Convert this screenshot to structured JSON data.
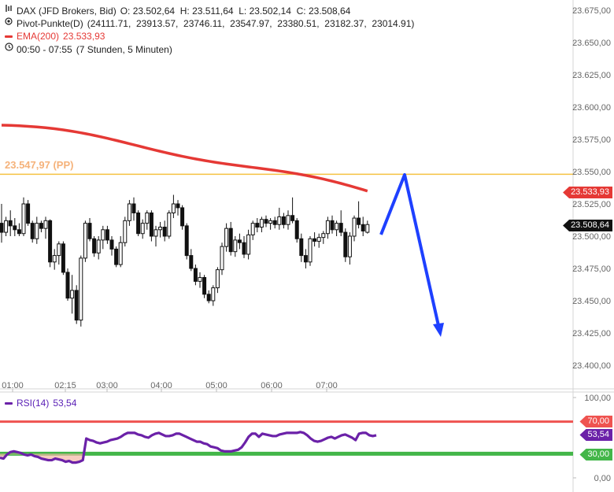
{
  "legend": {
    "instrument": "DAX (JFD Brokers, Bid)",
    "ohlc": "O: 23.502,64  H: 23.511,64  L: 23.502,14  C: 23.508,64",
    "pivot": "Pivot-Punkte(D)",
    "pivot_values": "(24111.71,  23913.57,  23746.11,  23547.97,  23380.51,  23182.37,  23014.91)",
    "ema": "EMA(200)",
    "ema_value": "23.533,93",
    "time_range": "00:50 - 07:55",
    "duration": "(7 Stunden, 5 Minuten)"
  },
  "pp_label": "23.547,97 (PP)",
  "badges": {
    "ema": "23.533,93",
    "last": "23.508,64",
    "rsi": "53,54",
    "rsi_upper": "70,00",
    "rsi_lower": "30,00"
  },
  "rsi_legend": {
    "name": "RSI(14)",
    "value": "53,54"
  },
  "colors": {
    "ema": "#e53935",
    "pp": "#f5c242",
    "pp_label": "#f5b27a",
    "rsi": "#6b21a8",
    "rsi_upper": "#ef5350",
    "rsi_lower": "#43b649",
    "arrow": "#1e40ff",
    "candle": "#111111"
  },
  "chart_data": [
    {
      "type": "candlestick",
      "title": "DAX (JFD Brokers, Bid)",
      "x_ticks": [
        "01:00",
        "02:15",
        "03:00",
        "04:00",
        "05:00",
        "06:00",
        "07:00"
      ],
      "y_ticks": [
        "23.675,00",
        "23.650,00",
        "23.625,00",
        "23.600,00",
        "23.575,00",
        "23.550,00",
        "23.525,00",
        "23.500,00",
        "23.475,00",
        "23.450,00",
        "23.425,00",
        "23.400,00"
      ],
      "ylim": [
        23387.5,
        23681.25
      ],
      "pivot_pp": 23547.97,
      "ema200": {
        "name": "EMA(200)",
        "start": 23586.0,
        "end": 23533.93
      },
      "candles": [
        [
          23510,
          23525,
          23495,
          23503
        ],
        [
          23503,
          23515,
          23500,
          23512
        ],
        [
          23512,
          23520,
          23500,
          23508
        ],
        [
          23508,
          23514,
          23500,
          23505
        ],
        [
          23505,
          23510,
          23500,
          23502
        ],
        [
          23502,
          23530,
          23500,
          23525
        ],
        [
          23525,
          23528,
          23508,
          23510
        ],
        [
          23510,
          23512,
          23495,
          23498
        ],
        [
          23498,
          23515,
          23494,
          23510
        ],
        [
          23510,
          23512,
          23503,
          23506
        ],
        [
          23506,
          23515,
          23498,
          23512
        ],
        [
          23512,
          23513,
          23476,
          23480
        ],
        [
          23480,
          23490,
          23474,
          23485
        ],
        [
          23485,
          23496,
          23478,
          23494
        ],
        [
          23494,
          23496,
          23470,
          23472
        ],
        [
          23472,
          23475,
          23450,
          23452
        ],
        [
          23452,
          23470,
          23440,
          23458
        ],
        [
          23458,
          23462,
          23432,
          23435
        ],
        [
          23435,
          23485,
          23430,
          23483
        ],
        [
          23483,
          23512,
          23480,
          23510
        ],
        [
          23510,
          23514,
          23496,
          23498
        ],
        [
          23498,
          23500,
          23484,
          23487
        ],
        [
          23487,
          23500,
          23482,
          23497
        ],
        [
          23497,
          23508,
          23490,
          23505
        ],
        [
          23505,
          23508,
          23494,
          23497
        ],
        [
          23497,
          23500,
          23485,
          23490
        ],
        [
          23490,
          23492,
          23476,
          23478
        ],
        [
          23478,
          23500,
          23476,
          23495
        ],
        [
          23495,
          23515,
          23492,
          23512
        ],
        [
          23512,
          23528,
          23508,
          23525
        ],
        [
          23525,
          23530,
          23512,
          23518
        ],
        [
          23518,
          23520,
          23500,
          23502
        ],
        [
          23502,
          23513,
          23498,
          23510
        ],
        [
          23510,
          23520,
          23505,
          23518
        ],
        [
          23518,
          23520,
          23496,
          23500
        ],
        [
          23500,
          23508,
          23492,
          23505
        ],
        [
          23505,
          23511,
          23499,
          23507
        ],
        [
          23507,
          23512,
          23496,
          23500
        ],
        [
          23500,
          23520,
          23498,
          23518
        ],
        [
          23518,
          23532,
          23514,
          23525
        ],
        [
          23525,
          23528,
          23516,
          23522
        ],
        [
          23522,
          23524,
          23505,
          23508
        ],
        [
          23508,
          23510,
          23482,
          23485
        ],
        [
          23485,
          23490,
          23473,
          23475
        ],
        [
          23475,
          23478,
          23462,
          23465
        ],
        [
          23465,
          23472,
          23460,
          23468
        ],
        [
          23468,
          23470,
          23452,
          23455
        ],
        [
          23455,
          23458,
          23448,
          23450
        ],
        [
          23450,
          23462,
          23446,
          23460
        ],
        [
          23460,
          23476,
          23456,
          23474
        ],
        [
          23474,
          23495,
          23470,
          23492
        ],
        [
          23492,
          23510,
          23488,
          23506
        ],
        [
          23506,
          23511,
          23485,
          23488
        ],
        [
          23488,
          23500,
          23484,
          23497
        ],
        [
          23497,
          23502,
          23490,
          23495
        ],
        [
          23495,
          23500,
          23483,
          23486
        ],
        [
          23486,
          23505,
          23482,
          23501
        ],
        [
          23501,
          23512,
          23497,
          23510
        ],
        [
          23510,
          23514,
          23503,
          23507
        ],
        [
          23507,
          23515,
          23503,
          23513
        ],
        [
          23513,
          23516,
          23507,
          23510
        ],
        [
          23510,
          23514,
          23505,
          23512
        ],
        [
          23512,
          23515,
          23506,
          23509
        ],
        [
          23509,
          23522,
          23505,
          23515
        ],
        [
          23515,
          23518,
          23506,
          23509
        ],
        [
          23509,
          23520,
          23505,
          23516
        ],
        [
          23516,
          23530,
          23510,
          23512
        ],
        [
          23512,
          23514,
          23495,
          23498
        ],
        [
          23498,
          23502,
          23480,
          23485
        ],
        [
          23485,
          23490,
          23475,
          23480
        ],
        [
          23480,
          23500,
          23477,
          23498
        ],
        [
          23498,
          23503,
          23492,
          23496
        ],
        [
          23496,
          23502,
          23491,
          23499
        ],
        [
          23499,
          23504,
          23494,
          23502
        ],
        [
          23502,
          23515,
          23498,
          23512
        ],
        [
          23512,
          23516,
          23502,
          23505
        ],
        [
          23505,
          23512,
          23500,
          23510
        ],
        [
          23510,
          23520,
          23500,
          23503
        ],
        [
          23503,
          23506,
          23480,
          23484
        ],
        [
          23484,
          23503,
          23478,
          23500
        ],
        [
          23500,
          23516,
          23496,
          23514
        ],
        [
          23514,
          23527,
          23506,
          23509
        ],
        [
          23509,
          23515,
          23500,
          23504
        ],
        [
          23503,
          23512,
          23502,
          23509
        ]
      ]
    },
    {
      "type": "line",
      "title": "RSI(14)",
      "ylim": [
        0,
        100
      ],
      "y_ticks": [
        "100,00",
        "0,00"
      ],
      "levels": [
        70,
        30
      ],
      "series": [
        {
          "name": "RSI(14)",
          "values": [
            25,
            24,
            29,
            32,
            33,
            32,
            31,
            29,
            28,
            29,
            27,
            26,
            24,
            23,
            22,
            22,
            24,
            23,
            22,
            20,
            21,
            19,
            19,
            20,
            22,
            49,
            47,
            46,
            44,
            43,
            44,
            45,
            47,
            48,
            49,
            51,
            54,
            56,
            56,
            56,
            54,
            53,
            51,
            50,
            53,
            55,
            56,
            54,
            52,
            52,
            53,
            55,
            55,
            53,
            51,
            49,
            47,
            45,
            45,
            43,
            42,
            39,
            38,
            37,
            34,
            33,
            33,
            33,
            34,
            35,
            38,
            44,
            51,
            55,
            55,
            51,
            55,
            54,
            53,
            52,
            52,
            54,
            55,
            56,
            56,
            56,
            56,
            57,
            56,
            53,
            49,
            46,
            45,
            46,
            48,
            50,
            51,
            49,
            51,
            53,
            54,
            52,
            50,
            47,
            55,
            56,
            56,
            53,
            52,
            53
          ]
        }
      ]
    }
  ]
}
